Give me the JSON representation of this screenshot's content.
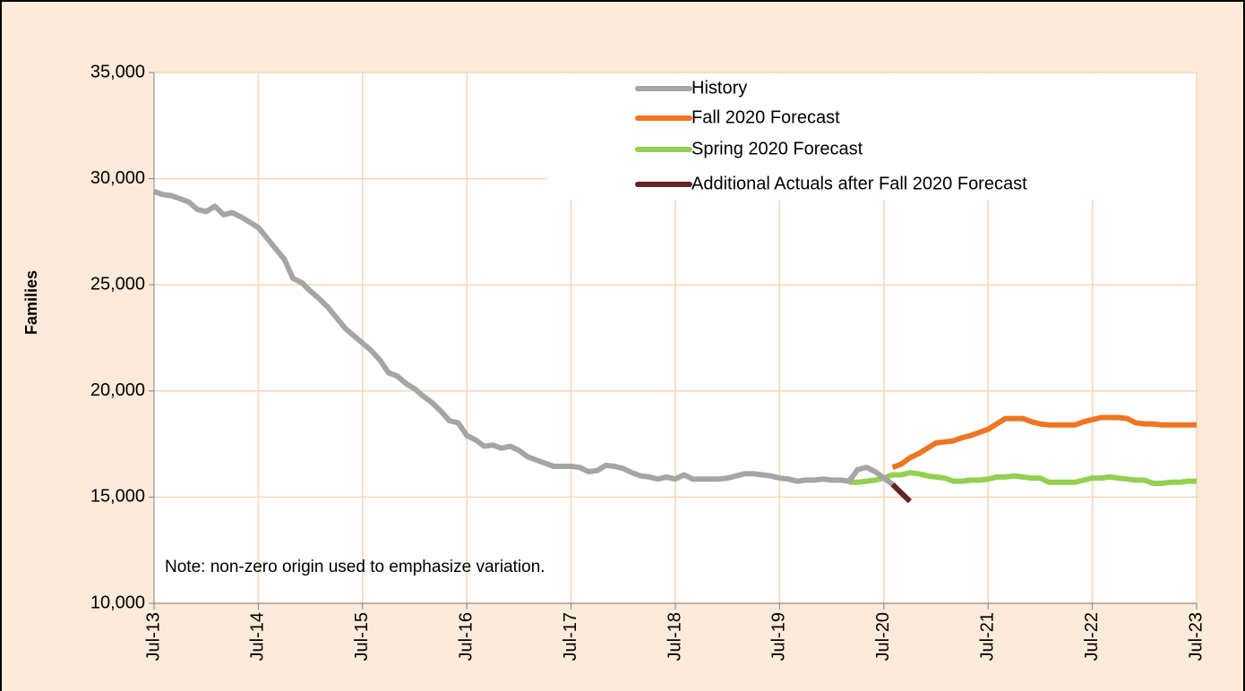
{
  "chart_data": {
    "type": "line",
    "ylabel": "Families",
    "annotation": "Note: non-zero origin used to emphasize variation.",
    "categories": [
      "Jul-13",
      null,
      null,
      null,
      null,
      null,
      null,
      null,
      null,
      null,
      null,
      null,
      "Jul-14",
      null,
      null,
      null,
      null,
      null,
      null,
      null,
      null,
      null,
      null,
      null,
      "Jul-15",
      null,
      null,
      null,
      null,
      null,
      null,
      null,
      null,
      null,
      null,
      null,
      "Jul-16",
      null,
      null,
      null,
      null,
      null,
      null,
      null,
      null,
      null,
      null,
      null,
      "Jul-17",
      null,
      null,
      null,
      null,
      null,
      null,
      null,
      null,
      null,
      null,
      null,
      "Jul-18",
      null,
      null,
      null,
      null,
      null,
      null,
      null,
      null,
      null,
      null,
      null,
      "Jul-19",
      null,
      null,
      null,
      null,
      null,
      null,
      null,
      null,
      null,
      null,
      null,
      "Jul-20",
      null,
      null,
      null,
      null,
      null,
      null,
      null,
      null,
      null,
      null,
      null,
      "Jul-21",
      null,
      null,
      null,
      null,
      null,
      null,
      null,
      null,
      null,
      null,
      null,
      "Jul-22",
      null,
      null,
      null,
      null,
      null,
      null,
      null,
      null,
      null,
      null,
      null,
      "Jul-23"
    ],
    "series": [
      {
        "name": "History",
        "color": "#a5a5a5",
        "values": [
          29400,
          29250,
          29200,
          29050,
          28900,
          28550,
          28450,
          28700,
          28300,
          28400,
          28200,
          27950,
          27700,
          27200,
          26700,
          26200,
          25300,
          25100,
          24700,
          24350,
          23950,
          23450,
          22950,
          22600,
          22250,
          21900,
          21450,
          20850,
          20700,
          20350,
          20100,
          19750,
          19450,
          19050,
          18600,
          18500,
          17900,
          17700,
          17400,
          17450,
          17300,
          17400,
          17200,
          16900,
          16750,
          16600,
          16450,
          16450,
          16450,
          16400,
          16200,
          16250,
          16500,
          16450,
          16350,
          16150,
          16000,
          15950,
          15850,
          15950,
          15850,
          16050,
          15850,
          15850,
          15850,
          15850,
          15900,
          16000,
          16100,
          16100,
          16050,
          16000,
          15900,
          15850,
          15750,
          15800,
          15800,
          15850,
          15800,
          15800,
          15750,
          16300,
          16400,
          16200,
          15900,
          15600,
          null,
          null,
          null,
          null,
          null,
          null,
          null,
          null,
          null,
          null,
          null,
          null,
          null,
          null,
          null,
          null,
          null,
          null,
          null,
          null,
          null,
          null,
          null,
          null,
          null,
          null,
          null,
          null,
          null,
          null,
          null,
          null,
          null,
          null,
          null
        ]
      },
      {
        "name": "Fall 2020 Forecast",
        "color": "#ee7623",
        "values": [
          null,
          null,
          null,
          null,
          null,
          null,
          null,
          null,
          null,
          null,
          null,
          null,
          null,
          null,
          null,
          null,
          null,
          null,
          null,
          null,
          null,
          null,
          null,
          null,
          null,
          null,
          null,
          null,
          null,
          null,
          null,
          null,
          null,
          null,
          null,
          null,
          null,
          null,
          null,
          null,
          null,
          null,
          null,
          null,
          null,
          null,
          null,
          null,
          null,
          null,
          null,
          null,
          null,
          null,
          null,
          null,
          null,
          null,
          null,
          null,
          null,
          null,
          null,
          null,
          null,
          null,
          null,
          null,
          null,
          null,
          null,
          null,
          null,
          null,
          null,
          null,
          null,
          null,
          null,
          null,
          null,
          null,
          null,
          null,
          null,
          16400,
          16550,
          16850,
          17050,
          17300,
          17550,
          17600,
          17650,
          17800,
          17900,
          18050,
          18200,
          18450,
          18700,
          18700,
          18700,
          18550,
          18450,
          18400,
          18400,
          18400,
          18400,
          18550,
          18650,
          18750,
          18750,
          18750,
          18700,
          18500,
          18450,
          18450,
          18400,
          18400,
          18400,
          18400,
          18400
        ]
      },
      {
        "name": "Spring 2020 Forecast",
        "color": "#92d050",
        "values": [
          null,
          null,
          null,
          null,
          null,
          null,
          null,
          null,
          null,
          null,
          null,
          null,
          null,
          null,
          null,
          null,
          null,
          null,
          null,
          null,
          null,
          null,
          null,
          null,
          null,
          null,
          null,
          null,
          null,
          null,
          null,
          null,
          null,
          null,
          null,
          null,
          null,
          null,
          null,
          null,
          null,
          null,
          null,
          null,
          null,
          null,
          null,
          null,
          null,
          null,
          null,
          null,
          null,
          null,
          null,
          null,
          null,
          null,
          null,
          null,
          null,
          null,
          null,
          null,
          null,
          null,
          null,
          null,
          null,
          null,
          null,
          null,
          null,
          null,
          null,
          null,
          null,
          null,
          null,
          null,
          15700,
          15700,
          15750,
          15800,
          15900,
          16050,
          16050,
          16150,
          16100,
          16000,
          15950,
          15900,
          15750,
          15750,
          15800,
          15800,
          15850,
          15950,
          15950,
          16000,
          15950,
          15900,
          15900,
          15700,
          15700,
          15700,
          15700,
          15800,
          15900,
          15900,
          15950,
          15900,
          15850,
          15800,
          15800,
          15650,
          15650,
          15700,
          15700,
          15750,
          15750
        ]
      },
      {
        "name": "Additional Actuals after Fall 2020 Forecast",
        "color": "#632523",
        "values": [
          null,
          null,
          null,
          null,
          null,
          null,
          null,
          null,
          null,
          null,
          null,
          null,
          null,
          null,
          null,
          null,
          null,
          null,
          null,
          null,
          null,
          null,
          null,
          null,
          null,
          null,
          null,
          null,
          null,
          null,
          null,
          null,
          null,
          null,
          null,
          null,
          null,
          null,
          null,
          null,
          null,
          null,
          null,
          null,
          null,
          null,
          null,
          null,
          null,
          null,
          null,
          null,
          null,
          null,
          null,
          null,
          null,
          null,
          null,
          null,
          null,
          null,
          null,
          null,
          null,
          null,
          null,
          null,
          null,
          null,
          null,
          null,
          null,
          null,
          null,
          null,
          null,
          null,
          null,
          null,
          null,
          null,
          null,
          null,
          null,
          15600,
          15200,
          14800,
          null,
          null,
          null,
          null,
          null,
          null,
          null,
          null,
          null,
          null,
          null,
          null,
          null,
          null,
          null,
          null,
          null,
          null,
          null,
          null,
          null,
          null,
          null,
          null,
          null,
          null,
          null,
          null,
          null,
          null,
          null,
          null,
          null
        ]
      }
    ],
    "ylim": [
      10000,
      35000
    ],
    "yticks": [
      {
        "value": 10000,
        "label": "10,000"
      },
      {
        "value": 15000,
        "label": "15,000"
      },
      {
        "value": 20000,
        "label": "20,000"
      },
      {
        "value": 25000,
        "label": "25,000"
      },
      {
        "value": 30000,
        "label": "30,000"
      },
      {
        "value": 35000,
        "label": "35,000"
      }
    ],
    "grid": true,
    "legend": "upper right"
  }
}
